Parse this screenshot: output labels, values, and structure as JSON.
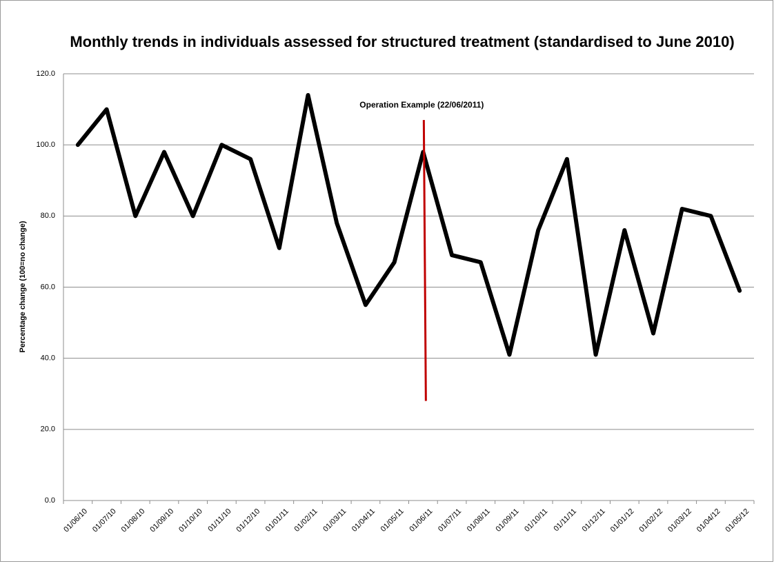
{
  "chart_data": {
    "type": "line",
    "title": "Monthly trends in individuals assessed for structured treatment (standardised to June 2010)",
    "y_label": "Percentage change  (100=no change)",
    "categories": [
      "01/06/10",
      "01/07/10",
      "01/08/10",
      "01/09/10",
      "01/10/10",
      "01/11/10",
      "01/12/10",
      "01/01/11",
      "01/02/11",
      "01/03/11",
      "01/04/11",
      "01/05/11",
      "01/06/11",
      "01/07/11",
      "01/08/11",
      "01/09/11",
      "01/10/11",
      "01/11/11",
      "01/12/11",
      "01/01/12",
      "01/02/12",
      "01/03/12",
      "01/04/12",
      "01/05/12"
    ],
    "series": [
      {
        "color": "#000000",
        "values": [
          100,
          110,
          80,
          98,
          80,
          100,
          96,
          71,
          114,
          78,
          55,
          67,
          98,
          69,
          67,
          41,
          76,
          96,
          41,
          76,
          47,
          82,
          80,
          59
        ]
      }
    ],
    "ylim": [
      0,
      120
    ],
    "yticks": [
      {
        "value": 0,
        "label": "0.0"
      },
      {
        "value": 20,
        "label": "20.0"
      },
      {
        "value": 40,
        "label": "40.0"
      },
      {
        "value": 60,
        "label": "60.0"
      },
      {
        "value": 80,
        "label": "80.0"
      },
      {
        "value": 100,
        "label": "100.0"
      },
      {
        "value": 120,
        "label": "120.0"
      }
    ],
    "grid": true,
    "annotation": {
      "text": "Operation Example (22/06/2011)",
      "color": "#c00000",
      "y_range": [
        28,
        107
      ]
    }
  }
}
